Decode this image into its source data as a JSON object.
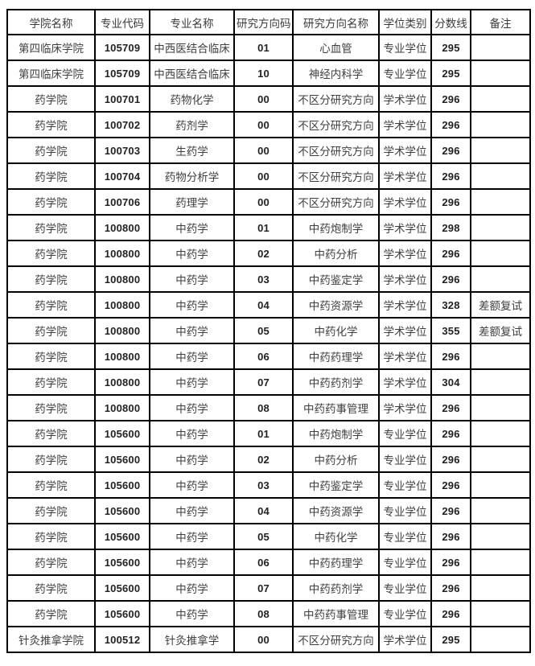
{
  "colors": {
    "background": "#ffffff",
    "border": "#000000",
    "text": "#3f3f3f",
    "number_text": "#222222"
  },
  "table": {
    "columns": [
      {
        "key": "college",
        "label": "学院名称",
        "numeric": false
      },
      {
        "key": "major-code",
        "label": "专业代码",
        "numeric": true
      },
      {
        "key": "major-name",
        "label": "专业名称",
        "numeric": false
      },
      {
        "key": "direction-code",
        "label": "研究方向码",
        "numeric": true
      },
      {
        "key": "direction-name",
        "label": "研究方向名称",
        "numeric": false
      },
      {
        "key": "degree-type",
        "label": "学位类别",
        "numeric": false
      },
      {
        "key": "score-line",
        "label": "分数线",
        "numeric": true
      },
      {
        "key": "remarks",
        "label": "备注",
        "numeric": false
      }
    ],
    "rows": [
      [
        "第四临床学院",
        "105709",
        "中西医结合临床",
        "01",
        "心血管",
        "专业学位",
        "295",
        ""
      ],
      [
        "第四临床学院",
        "105709",
        "中西医结合临床",
        "10",
        "神经内科学",
        "专业学位",
        "295",
        ""
      ],
      [
        "药学院",
        "100701",
        "药物化学",
        "00",
        "不区分研究方向",
        "学术学位",
        "296",
        ""
      ],
      [
        "药学院",
        "100702",
        "药剂学",
        "00",
        "不区分研究方向",
        "学术学位",
        "296",
        ""
      ],
      [
        "药学院",
        "100703",
        "生药学",
        "00",
        "不区分研究方向",
        "学术学位",
        "296",
        ""
      ],
      [
        "药学院",
        "100704",
        "药物分析学",
        "00",
        "不区分研究方向",
        "学术学位",
        "296",
        ""
      ],
      [
        "药学院",
        "100706",
        "药理学",
        "00",
        "不区分研究方向",
        "学术学位",
        "296",
        ""
      ],
      [
        "药学院",
        "100800",
        "中药学",
        "01",
        "中药炮制学",
        "学术学位",
        "298",
        ""
      ],
      [
        "药学院",
        "100800",
        "中药学",
        "02",
        "中药分析",
        "学术学位",
        "296",
        ""
      ],
      [
        "药学院",
        "100800",
        "中药学",
        "03",
        "中药鉴定学",
        "学术学位",
        "296",
        ""
      ],
      [
        "药学院",
        "100800",
        "中药学",
        "04",
        "中药资源学",
        "学术学位",
        "328",
        "差额复试"
      ],
      [
        "药学院",
        "100800",
        "中药学",
        "05",
        "中药化学",
        "学术学位",
        "355",
        "差额复试"
      ],
      [
        "药学院",
        "100800",
        "中药学",
        "06",
        "中药药理学",
        "学术学位",
        "296",
        ""
      ],
      [
        "药学院",
        "100800",
        "中药学",
        "07",
        "中药药剂学",
        "学术学位",
        "304",
        ""
      ],
      [
        "药学院",
        "100800",
        "中药学",
        "08",
        "中药药事管理",
        "学术学位",
        "296",
        ""
      ],
      [
        "药学院",
        "105600",
        "中药学",
        "01",
        "中药炮制学",
        "专业学位",
        "296",
        ""
      ],
      [
        "药学院",
        "105600",
        "中药学",
        "02",
        "中药分析",
        "专业学位",
        "296",
        ""
      ],
      [
        "药学院",
        "105600",
        "中药学",
        "03",
        "中药鉴定学",
        "专业学位",
        "296",
        ""
      ],
      [
        "药学院",
        "105600",
        "中药学",
        "04",
        "中药资源学",
        "专业学位",
        "296",
        ""
      ],
      [
        "药学院",
        "105600",
        "中药学",
        "05",
        "中药化学",
        "专业学位",
        "296",
        ""
      ],
      [
        "药学院",
        "105600",
        "中药学",
        "06",
        "中药药理学",
        "专业学位",
        "296",
        ""
      ],
      [
        "药学院",
        "105600",
        "中药学",
        "07",
        "中药药剂学",
        "专业学位",
        "296",
        ""
      ],
      [
        "药学院",
        "105600",
        "中药学",
        "08",
        "中药药事管理",
        "专业学位",
        "296",
        ""
      ],
      [
        "针灸推拿学院",
        "100512",
        "针灸推拿学",
        "00",
        "不区分研究方向",
        "学术学位",
        "295",
        ""
      ]
    ]
  }
}
